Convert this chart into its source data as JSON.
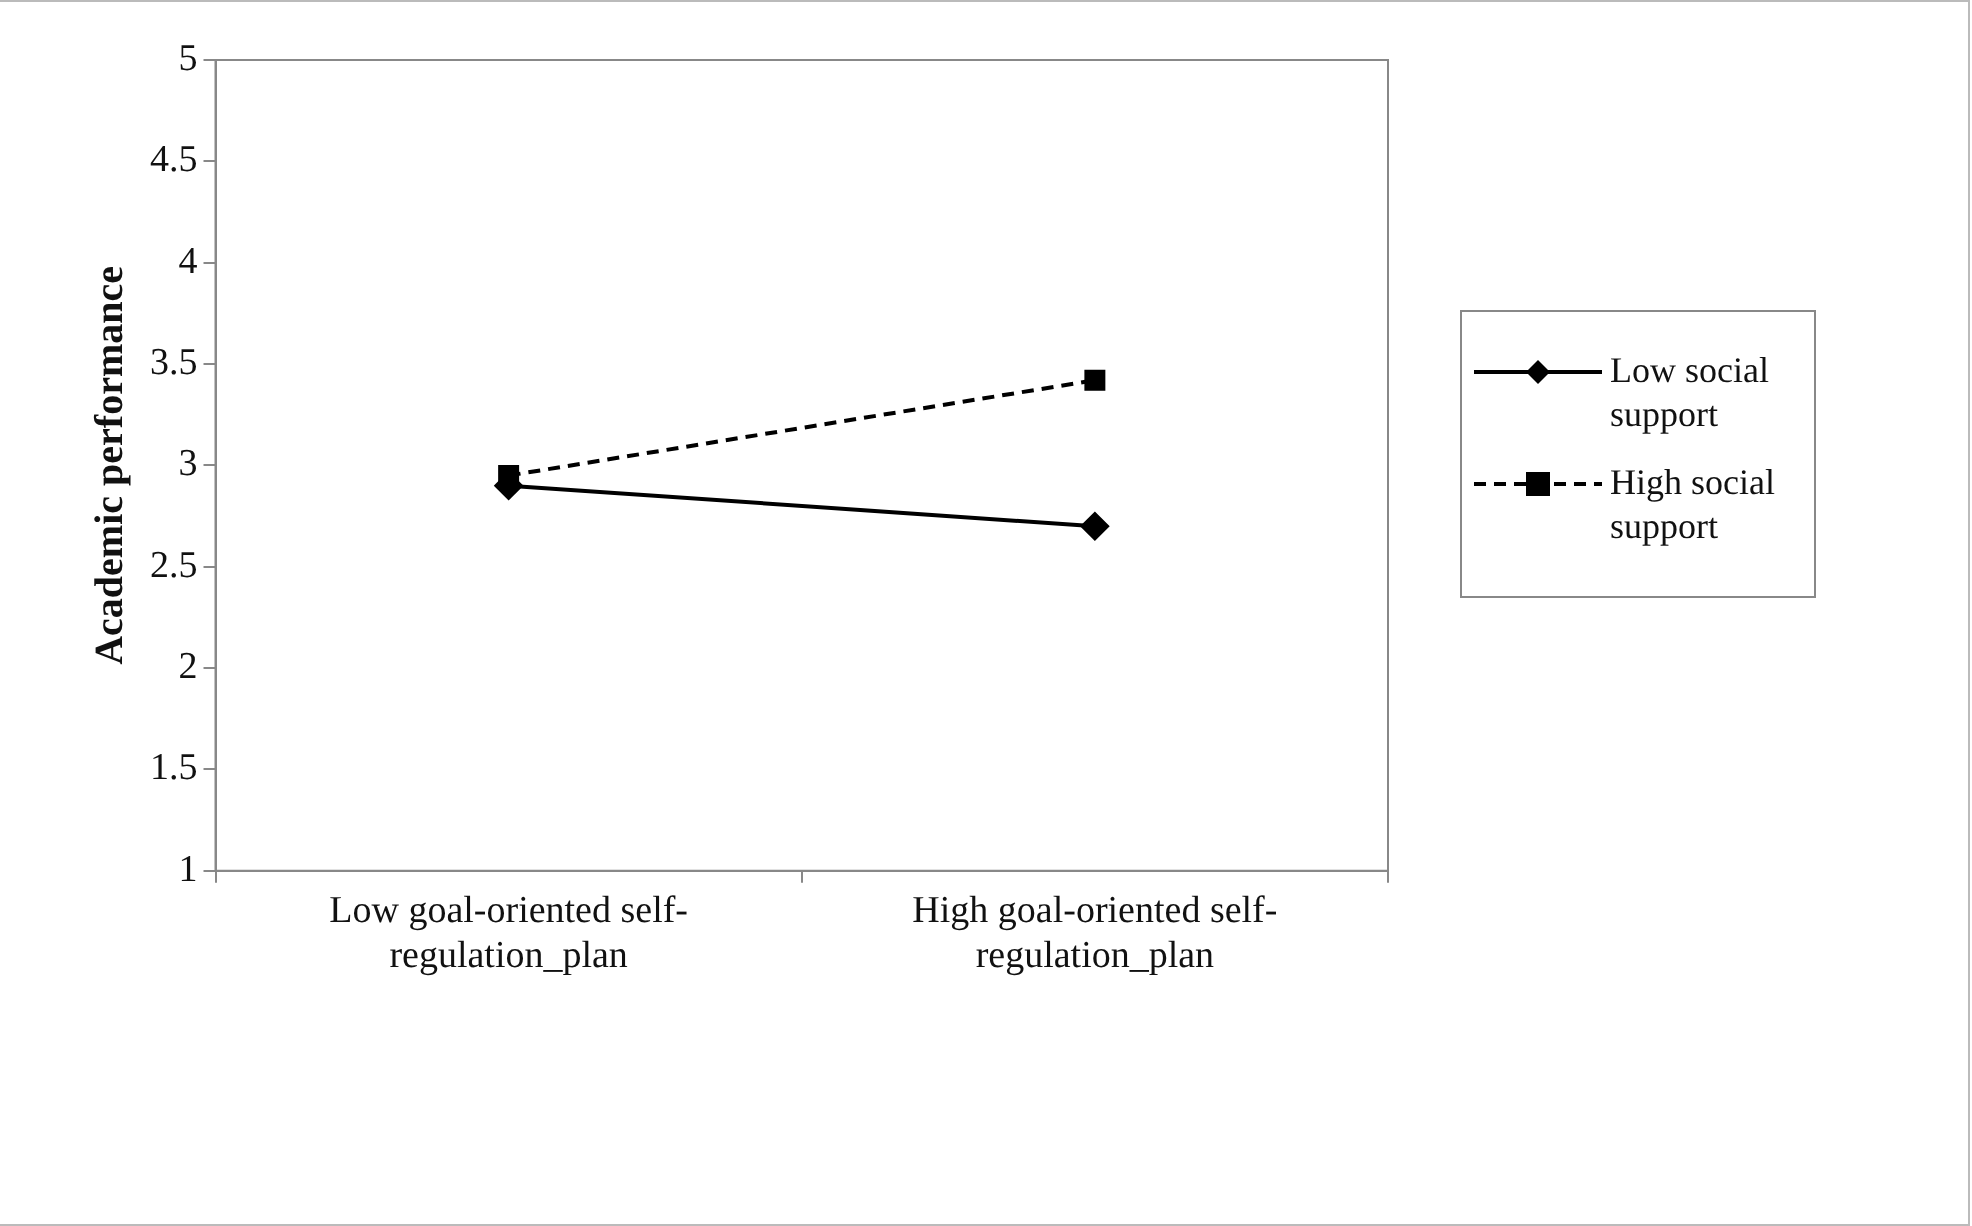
{
  "chart_data": {
    "type": "line",
    "ylabel": "Academic performance",
    "categories": [
      "Low goal-oriented self-regulation_plan",
      "High goal-oriented self-regulation_plan"
    ],
    "series": [
      {
        "name": "Low social support",
        "color": "#000000",
        "values": [
          2.9,
          2.7
        ],
        "marker": "diamond",
        "line_style": "solid"
      },
      {
        "name": "High social support",
        "color": "#000000",
        "values": [
          2.95,
          3.42
        ],
        "marker": "square",
        "line_style": "dashed"
      }
    ],
    "ylim": [
      1,
      5
    ],
    "yticks": [
      1,
      1.5,
      2,
      2.5,
      3,
      3.5,
      4,
      4.5,
      5
    ],
    "grid": false,
    "legend": "right"
  }
}
